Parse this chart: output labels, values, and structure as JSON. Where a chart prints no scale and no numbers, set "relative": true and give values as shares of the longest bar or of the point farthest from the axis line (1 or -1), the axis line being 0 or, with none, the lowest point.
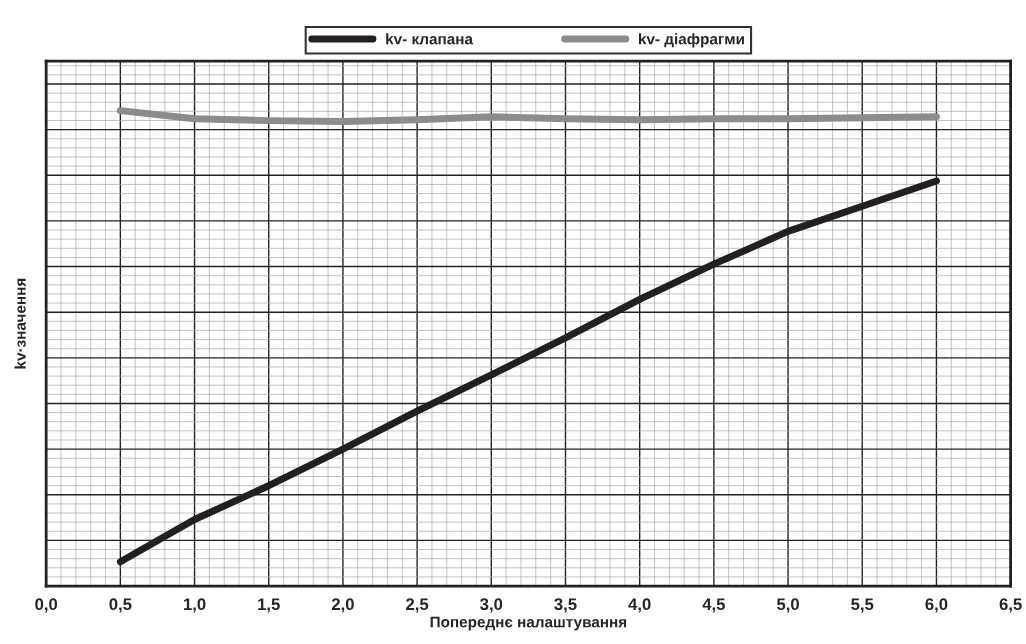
{
  "chart_data": {
    "type": "line",
    "xlabel": "Попереднє налаштування",
    "ylabel": "kv·значення",
    "relative": true,
    "x": [
      0.5,
      1.0,
      1.5,
      2.0,
      2.5,
      3.0,
      3.5,
      4.0,
      4.5,
      5.0,
      5.5,
      6.0
    ],
    "series": [
      {
        "name": "kv- клапана",
        "color": "#231f20",
        "values": [
          0.051,
          0.14,
          0.211,
          0.288,
          0.368,
          0.444,
          0.522,
          0.603,
          0.677,
          0.746,
          0.799,
          0.852
        ]
      },
      {
        "name": "kv- діафрагми",
        "color": "#8c8c8c",
        "values": [
          1.0,
          0.983,
          0.979,
          0.977,
          0.981,
          0.987,
          0.983,
          0.981,
          0.983,
          0.983,
          0.985,
          0.987
        ]
      }
    ],
    "xlim": [
      0,
      6.5
    ],
    "xticks": [
      {
        "value": 0,
        "label": "0,0"
      },
      {
        "value": 0.5,
        "label": "0,5"
      },
      {
        "value": 1,
        "label": "1,0"
      },
      {
        "value": 1.5,
        "label": "1,5"
      },
      {
        "value": 2,
        "label": "2,0"
      },
      {
        "value": 2.5,
        "label": "2,5"
      },
      {
        "value": 3,
        "label": "3,0"
      },
      {
        "value": 3.5,
        "label": "3,5"
      },
      {
        "value": 4,
        "label": "4,0"
      },
      {
        "value": 4.5,
        "label": "4,5"
      },
      {
        "value": 5,
        "label": "5,0"
      },
      {
        "value": 5.5,
        "label": "5,5"
      },
      {
        "value": 6,
        "label": "6,0"
      },
      {
        "value": 6.5,
        "label": "6,5"
      }
    ],
    "grid": true,
    "legend": "top",
    "marker": "none",
    "line_style": "solid"
  }
}
